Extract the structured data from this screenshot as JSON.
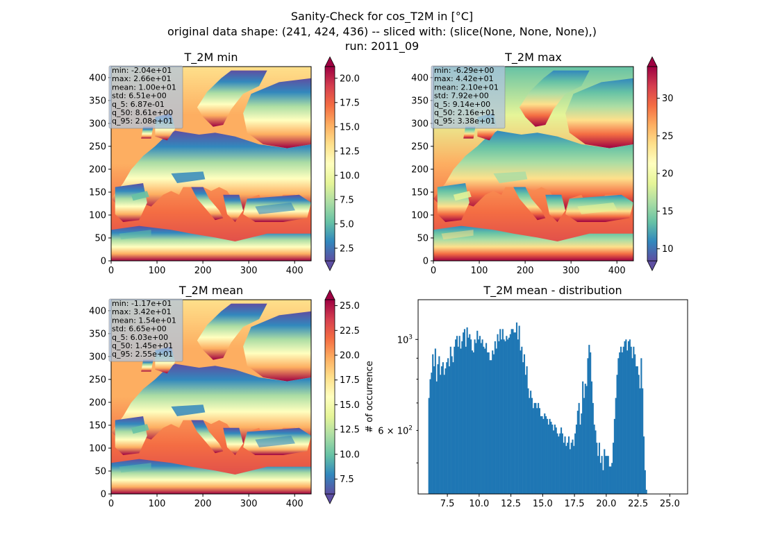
{
  "suptitle": [
    "Sanity-Check for cos_T2M in [°C]",
    "original data shape: (241, 424, 436) -- sliced with: (slice(None, None, None),)",
    "run: 2011_09"
  ],
  "colors": {
    "spectral_r": [
      "#5e4fa2",
      "#3288bd",
      "#66c2a5",
      "#abdda4",
      "#e6f598",
      "#ffffbf",
      "#fee08b",
      "#fdae61",
      "#f46d43",
      "#d53e4f",
      "#9e0142"
    ],
    "hist_bar": "#1f77b4",
    "stats_box": "#b0c4de"
  },
  "chart_data": [
    {
      "type": "heatmap",
      "title": "T_2M min",
      "xticks": [
        "0",
        "100",
        "200",
        "300",
        "400"
      ],
      "yticks": [
        "0",
        "50",
        "100",
        "150",
        "200",
        "250",
        "300",
        "350",
        "400"
      ],
      "xlim": [
        0,
        436
      ],
      "ylim": [
        0,
        424
      ],
      "colorbar": {
        "vmin": 1.2,
        "vmax": 21.2,
        "extend": "both",
        "ticks": [
          2.5,
          5,
          7.5,
          10,
          12.5,
          15,
          17.5,
          20
        ],
        "tick_labels": [
          "2.5",
          "5.0",
          "7.5",
          "10.0",
          "12.5",
          "15.0",
          "17.5",
          "20.0"
        ]
      },
      "stats": [
        "min: -2.04e+01",
        "max: 2.66e+01",
        "mean: 1.00e+01",
        "std: 6.51e+00",
        "q_5: 6.87e-01",
        "q_50: 8.61e+00",
        "q_95: 2.08e+01"
      ]
    },
    {
      "type": "heatmap",
      "title": "T_2M max",
      "xticks": [
        "0",
        "100",
        "200",
        "300",
        "400"
      ],
      "yticks": [
        "0",
        "50",
        "100",
        "150",
        "200",
        "250",
        "300",
        "350",
        "400"
      ],
      "xlim": [
        0,
        436
      ],
      "ylim": [
        0,
        424
      ],
      "colorbar": {
        "vmin": 8.4,
        "vmax": 34.2,
        "extend": "both",
        "ticks": [
          10,
          15,
          20,
          25,
          30
        ],
        "tick_labels": [
          "10",
          "15",
          "20",
          "25",
          "30"
        ]
      },
      "stats": [
        "min: -6.29e+00",
        "max: 4.42e+01",
        "mean: 2.10e+01",
        "std: 7.92e+00",
        "q_5: 9.14e+00",
        "q_50: 2.16e+01",
        "q_95: 3.38e+01"
      ]
    },
    {
      "type": "heatmap",
      "title": "T_2M mean",
      "xticks": [
        "0",
        "100",
        "200",
        "300",
        "400"
      ],
      "yticks": [
        "0",
        "50",
        "100",
        "150",
        "200",
        "250",
        "300",
        "350",
        "400"
      ],
      "xlim": [
        0,
        436
      ],
      "ylim": [
        0,
        424
      ],
      "colorbar": {
        "vmin": 6.0,
        "vmax": 25.6,
        "extend": "both",
        "ticks": [
          7.5,
          10,
          12.5,
          15,
          17.5,
          20,
          22.5,
          25
        ],
        "tick_labels": [
          "7.5",
          "10.0",
          "12.5",
          "15.0",
          "17.5",
          "20.0",
          "22.5",
          "25.0"
        ]
      },
      "stats": [
        "min: -1.17e+01",
        "max: 3.42e+01",
        "mean: 1.54e+01",
        "std: 6.65e+00",
        "q_5: 6.03e+00",
        "q_50: 1.45e+01",
        "q_95: 2.55e+01"
      ]
    },
    {
      "type": "bar",
      "title": "T_2M mean - distribution",
      "ylabel": "# of occurrence",
      "yscale": "log",
      "xlim": [
        5.2,
        26.4
      ],
      "ylim": [
        420,
        1250
      ],
      "xticks": [
        7.5,
        10,
        12.5,
        15,
        17.5,
        20,
        22.5,
        25
      ],
      "xtick_labels": [
        "7.5",
        "10.0",
        "12.5",
        "15.0",
        "17.5",
        "20.0",
        "22.5",
        "25.0"
      ],
      "ytick_labels": [
        "10^3",
        "6 × 10^2"
      ],
      "bin_start": 6.0,
      "bin_width": 0.1,
      "values": [
        720,
        800,
        830,
        920,
        860,
        950,
        790,
        870,
        910,
        820,
        860,
        880,
        820,
        850,
        880,
        900,
        860,
        960,
        910,
        880,
        960,
        1000,
        1020,
        960,
        1020,
        950,
        990,
        1040,
        1060,
        960,
        1070,
        1010,
        1030,
        1000,
        940,
        930,
        1000,
        980,
        1050,
        1000,
        1020,
        980,
        1000,
        960,
        950,
        980,
        930,
        930,
        890,
        890,
        940,
        920,
        990,
        950,
        1030,
        990,
        1060,
        1000,
        1060,
        1000,
        990,
        1020,
        1000,
        1010,
        1030,
        1060,
        1060,
        1040,
        1040,
        1100,
        1000,
        1080,
        940,
        960,
        880,
        920,
        820,
        860,
        760,
        720,
        750,
        720,
        680,
        700,
        700,
        680,
        700,
        680,
        650,
        650,
        640,
        660,
        650,
        640,
        620,
        640,
        630,
        620,
        600,
        620,
        610,
        590,
        580,
        590,
        610,
        590,
        560,
        580,
        550,
        560,
        580,
        540,
        560,
        570,
        550,
        590,
        620,
        670,
        700,
        620,
        660,
        790,
        720,
        780,
        770,
        900,
        970,
        930,
        790,
        700,
        620,
        600,
        560,
        520,
        560,
        500,
        520,
        480,
        540,
        520,
        520,
        520,
        490,
        490,
        500,
        560,
        640,
        720,
        820,
        900,
        930,
        960,
        930,
        960,
        990,
        1000,
        940,
        990,
        1000,
        960,
        900,
        960,
        920,
        860,
        860,
        820,
        760,
        900,
        760,
        580,
        480,
        430
      ]
    }
  ]
}
